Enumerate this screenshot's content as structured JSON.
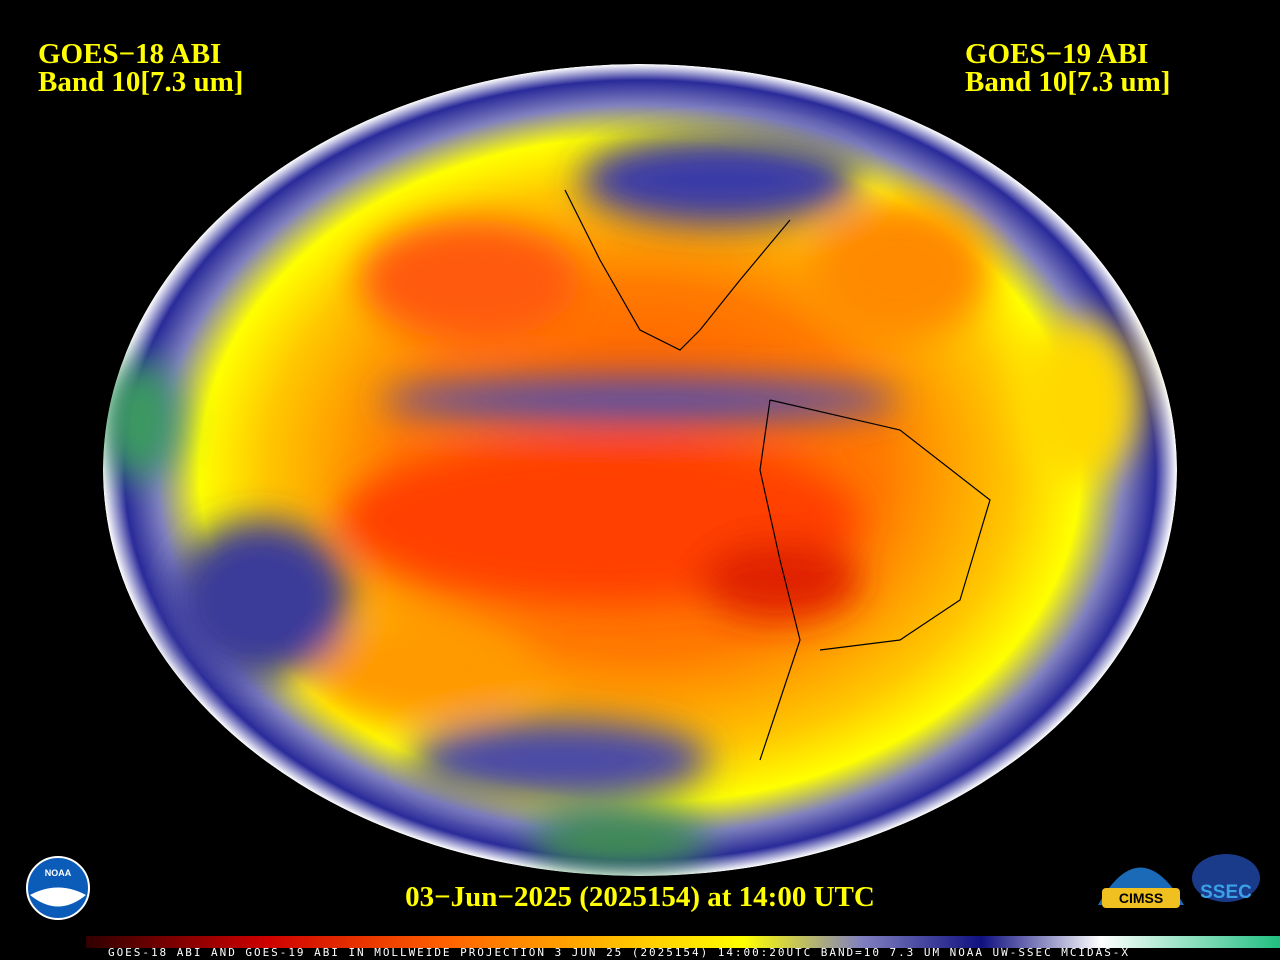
{
  "header": {
    "left": {
      "satellite": "GOES−18 ABI",
      "band": "Band 10[7.3 um]"
    },
    "right": {
      "satellite": "GOES−19 ABI",
      "band": "Band 10[7.3 um]"
    }
  },
  "timestamp": "03−Jun−2025 (2025154) at 14:00 UTC",
  "footer": "GOES-18 ABI AND GOES-19 ABI IN MOLLWEIDE PROJECTION 3 JUN 25 (2025154) 14:00:20UTC BAND=10 7.3 UM NOAA UW-SSEC MCIDAS-X",
  "logos": [
    "NOAA",
    "CIMSS",
    "SSEC"
  ]
}
